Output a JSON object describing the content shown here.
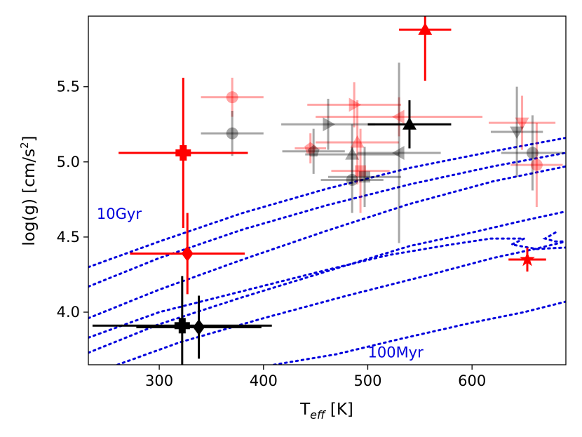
{
  "chart_data": {
    "type": "scatter",
    "xlabel": "T",
    "xlabel_sub": "eff",
    "xlabel_unit": " [K]",
    "ylabel": "log(g) [cm/s",
    "ylabel_sup": "2",
    "ylabel_close": "]",
    "xlim": [
      232,
      690
    ],
    "ylim": [
      3.65,
      5.97
    ],
    "x_ticks": [
      300,
      400,
      500,
      600
    ],
    "y_ticks": [
      4.0,
      4.5,
      5.0,
      5.5
    ],
    "x_tick_labels": [
      "300",
      "400",
      "500",
      "600"
    ],
    "y_tick_labels": [
      "4.0",
      "4.5",
      "5.0",
      "5.5"
    ],
    "grid": false,
    "colors": {
      "red": "#ff0000",
      "black": "#000000",
      "isochrone": "#0000dd"
    },
    "isochrone_labels": [
      {
        "text": "10Gyr",
        "x": 240,
        "y": 4.62
      },
      {
        "text": "100Myr",
        "x": 500,
        "y": 3.7
      }
    ],
    "isochrones": [
      [
        [
          232,
          4.3
        ],
        [
          300,
          4.47
        ],
        [
          380,
          4.66
        ],
        [
          460,
          4.82
        ],
        [
          540,
          4.96
        ],
        [
          620,
          5.07
        ],
        [
          690,
          5.16
        ]
      ],
      [
        [
          232,
          4.17
        ],
        [
          300,
          4.36
        ],
        [
          380,
          4.55
        ],
        [
          460,
          4.71
        ],
        [
          540,
          4.85
        ],
        [
          620,
          4.97
        ],
        [
          690,
          5.06
        ]
      ],
      [
        [
          232,
          3.96
        ],
        [
          300,
          4.15
        ],
        [
          380,
          4.35
        ],
        [
          460,
          4.54
        ],
        [
          540,
          4.72
        ],
        [
          620,
          4.87
        ],
        [
          690,
          4.97
        ]
      ],
      [
        [
          232,
          3.83
        ],
        [
          300,
          4.0
        ],
        [
          380,
          4.14
        ],
        [
          460,
          4.28
        ],
        [
          520,
          4.38
        ],
        [
          580,
          4.45
        ],
        [
          618,
          4.49
        ],
        [
          650,
          4.49
        ],
        [
          638,
          4.45
        ],
        [
          662,
          4.42
        ],
        [
          690,
          4.43
        ]
      ],
      [
        [
          232,
          3.73
        ],
        [
          300,
          3.92
        ],
        [
          380,
          4.1
        ],
        [
          460,
          4.27
        ],
        [
          540,
          4.44
        ],
        [
          600,
          4.53
        ],
        [
          650,
          4.61
        ],
        [
          690,
          4.67
        ]
      ],
      [
        [
          260,
          3.65
        ],
        [
          320,
          3.8
        ],
        [
          400,
          3.96
        ],
        [
          480,
          4.11
        ],
        [
          560,
          4.25
        ],
        [
          620,
          4.36
        ],
        [
          660,
          4.42
        ],
        [
          690,
          4.47
        ]
      ],
      [
        [
          410,
          3.65
        ],
        [
          470,
          3.72
        ],
        [
          530,
          3.82
        ],
        [
          600,
          3.93
        ],
        [
          650,
          4.0
        ],
        [
          690,
          4.07
        ]
      ],
      [
        [
          680,
          4.53
        ],
        [
          670,
          4.49
        ],
        [
          680,
          4.47
        ],
        [
          690,
          4.47
        ]
      ]
    ],
    "series": [
      {
        "color": "red",
        "alpha": 1.0,
        "marker": "triangle-up",
        "x": 555,
        "y": 5.88,
        "xerr": 25,
        "yerr": [
          0.34,
          0.1
        ]
      },
      {
        "color": "red",
        "alpha": 1.0,
        "marker": "plus",
        "x": 323,
        "y": 5.06,
        "xerr": 62,
        "yerr": 0.5
      },
      {
        "color": "red",
        "alpha": 1.0,
        "marker": "diamond",
        "x": 327,
        "y": 4.39,
        "xerr": 55,
        "yerr": 0.27
      },
      {
        "color": "red",
        "alpha": 1.0,
        "marker": "star",
        "x": 653,
        "y": 4.35,
        "xerr": 18,
        "yerr": 0.08
      },
      {
        "color": "black",
        "alpha": 1.0,
        "marker": "triangle-up",
        "x": 540,
        "y": 5.25,
        "xerr": 40,
        "yerr": 0.16
      },
      {
        "color": "black",
        "alpha": 1.0,
        "marker": "plus",
        "x": 322,
        "y": 3.91,
        "xerr": 86,
        "yerr": 0.33
      },
      {
        "color": "black",
        "alpha": 1.0,
        "marker": "diamond",
        "x": 338,
        "y": 3.9,
        "xerr": 60,
        "yerr": 0.21
      },
      {
        "color": "red",
        "alpha": 0.35,
        "marker": "circle",
        "x": 370,
        "y": 5.43,
        "xerr": 30,
        "yerr": 0.13
      },
      {
        "color": "red",
        "alpha": 0.35,
        "marker": "triangle-right",
        "x": 487,
        "y": 5.38,
        "xerr": 45,
        "yerr": 0.15
      },
      {
        "color": "red",
        "alpha": 0.35,
        "marker": "triangle-left",
        "x": 530,
        "y": 5.3,
        "xerr": 80,
        "yerr": 0.13
      },
      {
        "color": "red",
        "alpha": 0.35,
        "marker": "triangle-down",
        "x": 648,
        "y": 5.26,
        "xerr": 32,
        "yerr": 0.18
      },
      {
        "color": "red",
        "alpha": 0.35,
        "marker": "pentagon",
        "x": 445,
        "y": 5.09,
        "xerr": 15,
        "yerr": 0.1
      },
      {
        "color": "red",
        "alpha": 0.35,
        "marker": "triangle-up",
        "x": 490,
        "y": 5.13,
        "xerr": 40,
        "yerr": 0.28
      },
      {
        "color": "red",
        "alpha": 0.35,
        "marker": "square",
        "x": 493,
        "y": 4.94,
        "xerr": 28,
        "yerr": 0.28
      },
      {
        "color": "red",
        "alpha": 0.35,
        "marker": "circle",
        "x": 662,
        "y": 4.98,
        "xerr": 25,
        "yerr": 0.28
      },
      {
        "color": "black",
        "alpha": 0.35,
        "marker": "circle",
        "x": 370,
        "y": 5.19,
        "xerr": 30,
        "yerr": 0.15
      },
      {
        "color": "black",
        "alpha": 0.35,
        "marker": "triangle-right",
        "x": 462,
        "y": 5.25,
        "xerr": 45,
        "yerr": 0.17
      },
      {
        "color": "black",
        "alpha": 0.35,
        "marker": "pentagon",
        "x": 448,
        "y": 5.07,
        "xerr": 30,
        "yerr": 0.15
      },
      {
        "color": "black",
        "alpha": 0.35,
        "marker": "triangle-up",
        "x": 485,
        "y": 5.05,
        "xerr": 45,
        "yerr": 0.2
      },
      {
        "color": "black",
        "alpha": 0.35,
        "marker": "triangle-left",
        "x": 530,
        "y": 5.06,
        "xerr": 40,
        "yerr": 0.6
      },
      {
        "color": "black",
        "alpha": 0.35,
        "marker": "circle",
        "x": 485,
        "y": 4.88,
        "xerr": 30,
        "yerr": 0.22
      },
      {
        "color": "black",
        "alpha": 0.35,
        "marker": "square",
        "x": 497,
        "y": 4.9,
        "xerr": 35,
        "yerr": 0.2
      },
      {
        "color": "black",
        "alpha": 0.35,
        "marker": "triangle-down",
        "x": 643,
        "y": 5.2,
        "xerr": 25,
        "yerr": 0.3
      },
      {
        "color": "black",
        "alpha": 0.35,
        "marker": "circle",
        "x": 658,
        "y": 5.06,
        "xerr": 30,
        "yerr": 0.25
      }
    ]
  }
}
